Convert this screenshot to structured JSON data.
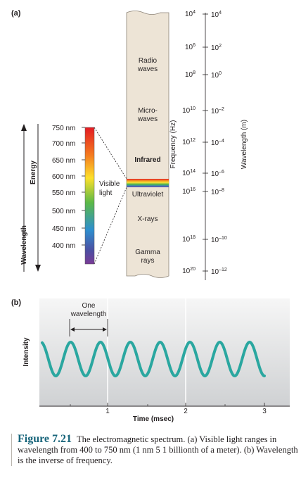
{
  "panel_a": {
    "label": "(a)",
    "wavelength_label": "Wavelength",
    "energy_label": "Energy",
    "visible_nm": [
      "750 nm",
      "700 nm",
      "650 nm",
      "600 nm",
      "550 nm",
      "500 nm",
      "450 nm",
      "400 nm"
    ],
    "visible_light_label": [
      "Visible",
      "light"
    ],
    "bands": [
      {
        "lines": [
          "Radio",
          "waves"
        ]
      },
      {
        "lines": [
          "Micro-",
          "waves"
        ]
      },
      {
        "lines": [
          "Infrared"
        ]
      },
      {
        "lines": [
          "Ultraviolet"
        ]
      },
      {
        "lines": [
          "X-rays"
        ]
      },
      {
        "lines": [
          "Gamma",
          "rays"
        ]
      }
    ],
    "frequency_axis_label": "Frequency (Hz)",
    "frequency_ticks": [
      {
        "base": "10",
        "exp": "4"
      },
      {
        "base": "10",
        "exp": "6"
      },
      {
        "base": "10",
        "exp": "8"
      },
      {
        "base": "10",
        "exp": "10"
      },
      {
        "base": "10",
        "exp": "12"
      },
      {
        "base": "10",
        "exp": "14"
      },
      {
        "base": "10",
        "exp": "16"
      },
      {
        "base": "10",
        "exp": "18"
      },
      {
        "base": "10",
        "exp": "20"
      }
    ],
    "wavelength_axis_label": "Wavelength (m)",
    "wavelength_ticks": [
      {
        "base": "10",
        "exp": "4"
      },
      {
        "base": "10",
        "exp": "2"
      },
      {
        "base": "10",
        "exp": "0"
      },
      {
        "base": "10",
        "exp": "–2"
      },
      {
        "base": "10",
        "exp": "–4"
      },
      {
        "base": "10",
        "exp": "–6"
      },
      {
        "base": "10",
        "exp": "–8"
      },
      {
        "base": "10",
        "exp": "–10"
      },
      {
        "base": "10",
        "exp": "–12"
      }
    ]
  },
  "panel_b": {
    "label": "(b)",
    "annotation": [
      "One",
      "wavelength"
    ],
    "y_label": "Intensity",
    "x_label": "Time (msec)",
    "x_ticks": [
      "1",
      "2",
      "3"
    ],
    "wave_color": "#2aa7a0",
    "cycles_per_msec": 2.5
  },
  "caption": {
    "figure_number": "Figure 7.21",
    "text": "The electromagnetic spectrum. (a) Visible light ranges in wavelength from 400 to 750 nm (1 nm 5 1 billionth of a meter). (b) Wavelength is the inverse of frequency."
  }
}
